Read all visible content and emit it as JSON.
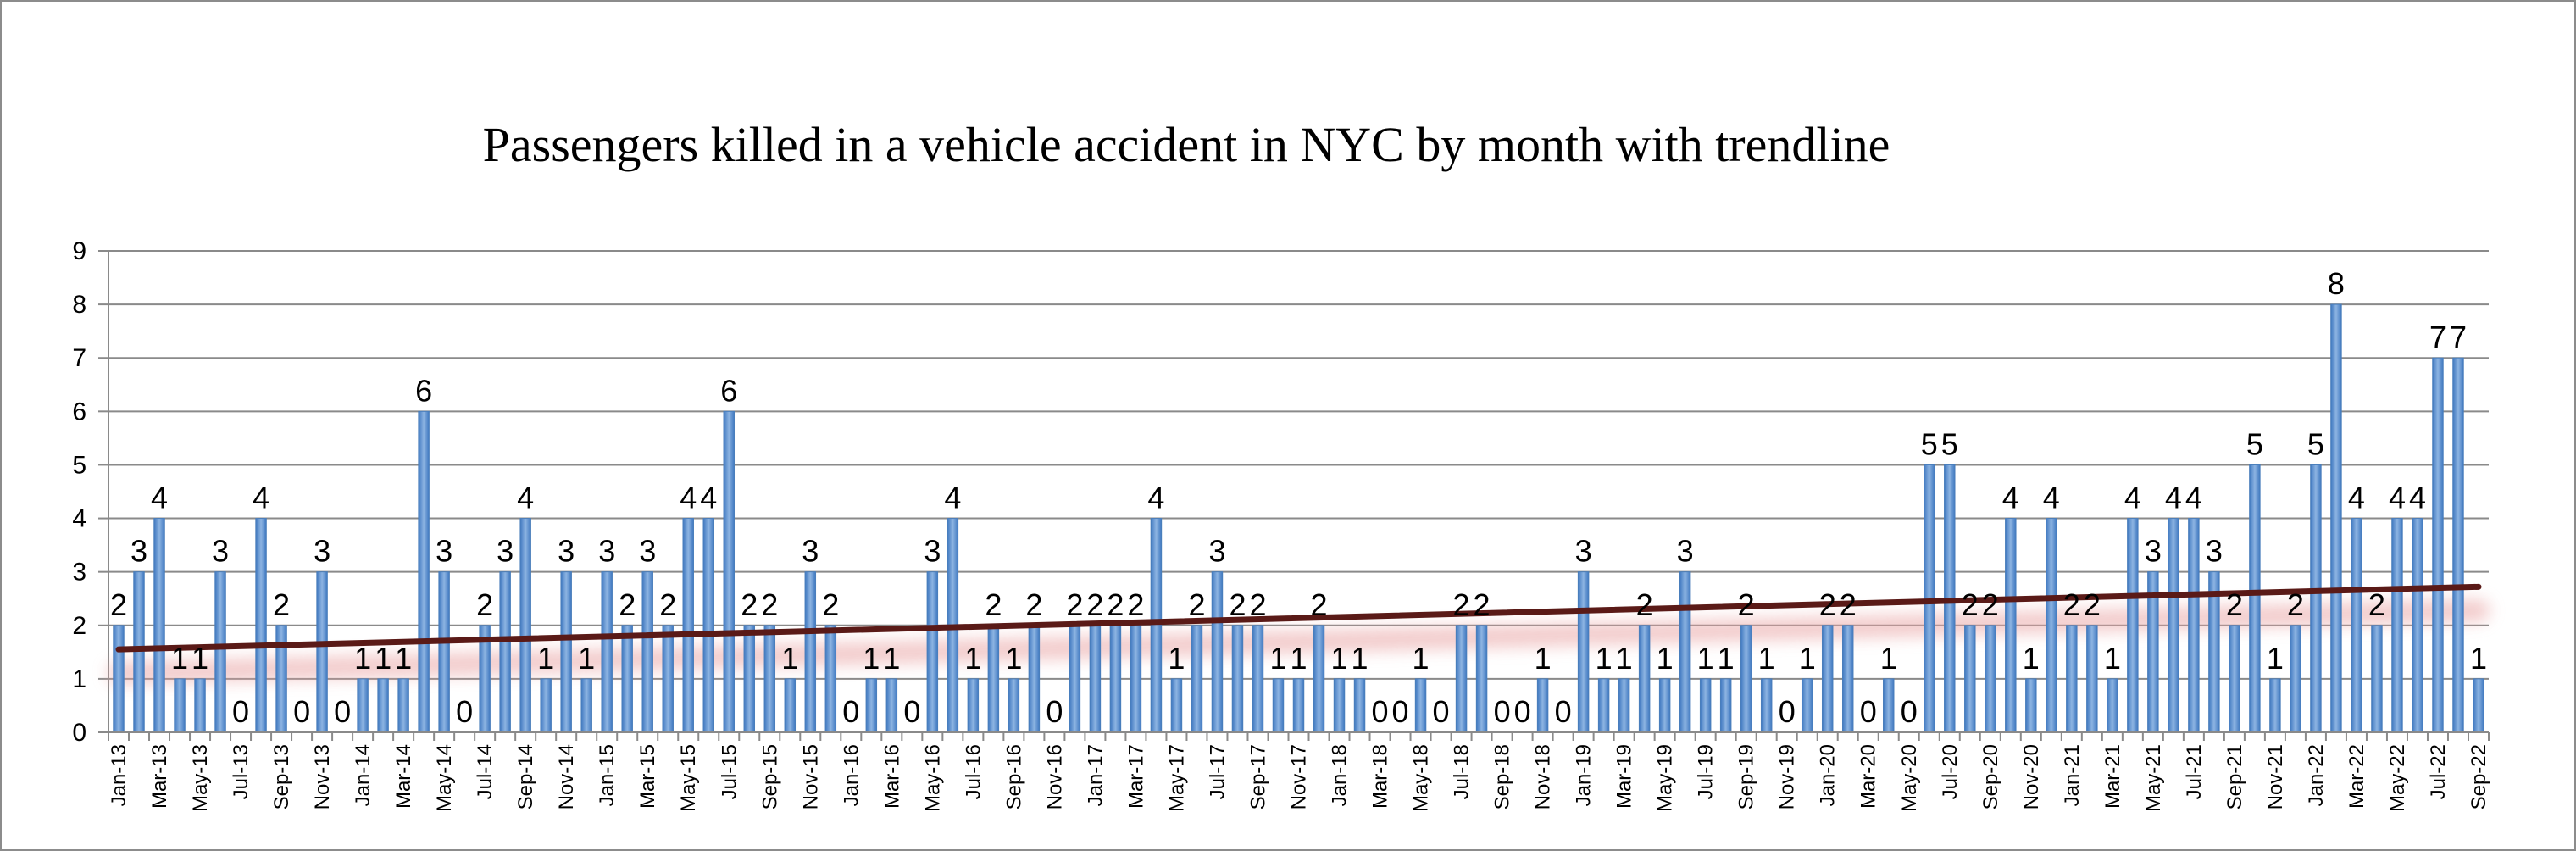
{
  "chart_data": {
    "type": "bar",
    "title": "Passengers killed in a vehicle accident in NYC by month with trendline",
    "xlabel": "",
    "ylabel": "",
    "ylim": [
      0,
      9
    ],
    "yticks": [
      "0",
      "1",
      "2",
      "3",
      "4",
      "5",
      "6",
      "7",
      "8",
      "9"
    ],
    "grid": true,
    "legend": "none",
    "trendline": {
      "type": "linear",
      "start": 1.55,
      "end": 2.72
    },
    "x_start": {
      "year": 2013,
      "month": 1
    },
    "categories": [
      "Jan-13",
      "Feb-13",
      "Mar-13",
      "Apr-13",
      "May-13",
      "Jun-13",
      "Jul-13",
      "Aug-13",
      "Sep-13",
      "Oct-13",
      "Nov-13",
      "Dec-13",
      "Jan-14",
      "Feb-14",
      "Mar-14",
      "Apr-14",
      "May-14",
      "Jun-14",
      "Jul-14",
      "Aug-14",
      "Sep-14",
      "Oct-14",
      "Nov-14",
      "Dec-14",
      "Jan-15",
      "Feb-15",
      "Mar-15",
      "Apr-15",
      "May-15",
      "Jun-15",
      "Jul-15",
      "Aug-15",
      "Sep-15",
      "Oct-15",
      "Nov-15",
      "Dec-15",
      "Jan-16",
      "Feb-16",
      "Mar-16",
      "Apr-16",
      "May-16",
      "Jun-16",
      "Jul-16",
      "Aug-16",
      "Sep-16",
      "Oct-16",
      "Nov-16",
      "Dec-16",
      "Jan-17",
      "Feb-17",
      "Mar-17",
      "Apr-17",
      "May-17",
      "Jun-17",
      "Jul-17",
      "Aug-17",
      "Sep-17",
      "Oct-17",
      "Nov-17",
      "Dec-17",
      "Jan-18",
      "Feb-18",
      "Mar-18",
      "Apr-18",
      "May-18",
      "Jun-18",
      "Jul-18",
      "Aug-18",
      "Sep-18",
      "Oct-18",
      "Nov-18",
      "Dec-18",
      "Jan-19",
      "Feb-19",
      "Mar-19",
      "Apr-19",
      "May-19",
      "Jun-19",
      "Jul-19",
      "Aug-19",
      "Sep-19",
      "Oct-19",
      "Nov-19",
      "Dec-19",
      "Jan-20",
      "Feb-20",
      "Mar-20",
      "Apr-20",
      "May-20",
      "Jun-20",
      "Jul-20",
      "Aug-20",
      "Sep-20",
      "Oct-20",
      "Nov-20",
      "Dec-20",
      "Jan-21",
      "Feb-21",
      "Mar-21",
      "Apr-21",
      "May-21",
      "Jun-21",
      "Jul-21",
      "Aug-21",
      "Sep-21",
      "Oct-21",
      "Nov-21",
      "Dec-21",
      "Jan-22",
      "Feb-22",
      "Mar-22",
      "Apr-22",
      "May-22",
      "Jun-22",
      "Jul-22",
      "Aug-22",
      "Sep-22"
    ],
    "values": [
      2,
      3,
      4,
      1,
      1,
      3,
      0,
      4,
      2,
      0,
      3,
      0,
      1,
      1,
      1,
      6,
      3,
      0,
      2,
      3,
      4,
      1,
      3,
      1,
      3,
      2,
      3,
      2,
      4,
      4,
      6,
      2,
      2,
      1,
      3,
      2,
      0,
      1,
      1,
      0,
      3,
      4,
      1,
      2,
      1,
      2,
      0,
      2,
      2,
      2,
      2,
      4,
      1,
      2,
      3,
      2,
      2,
      1,
      1,
      2,
      1,
      1,
      0,
      0,
      1,
      0,
      2,
      2,
      0,
      0,
      1,
      0,
      3,
      1,
      1,
      2,
      1,
      3,
      1,
      1,
      2,
      1,
      0,
      1,
      2,
      2,
      0,
      1,
      0,
      5,
      5,
      2,
      2,
      4,
      1,
      4,
      2,
      2,
      1,
      4,
      3,
      4,
      4,
      3,
      2,
      5,
      1,
      2,
      5,
      8,
      4,
      2,
      4,
      4,
      7,
      7,
      1
    ],
    "series_color": "#5B9BD5"
  }
}
